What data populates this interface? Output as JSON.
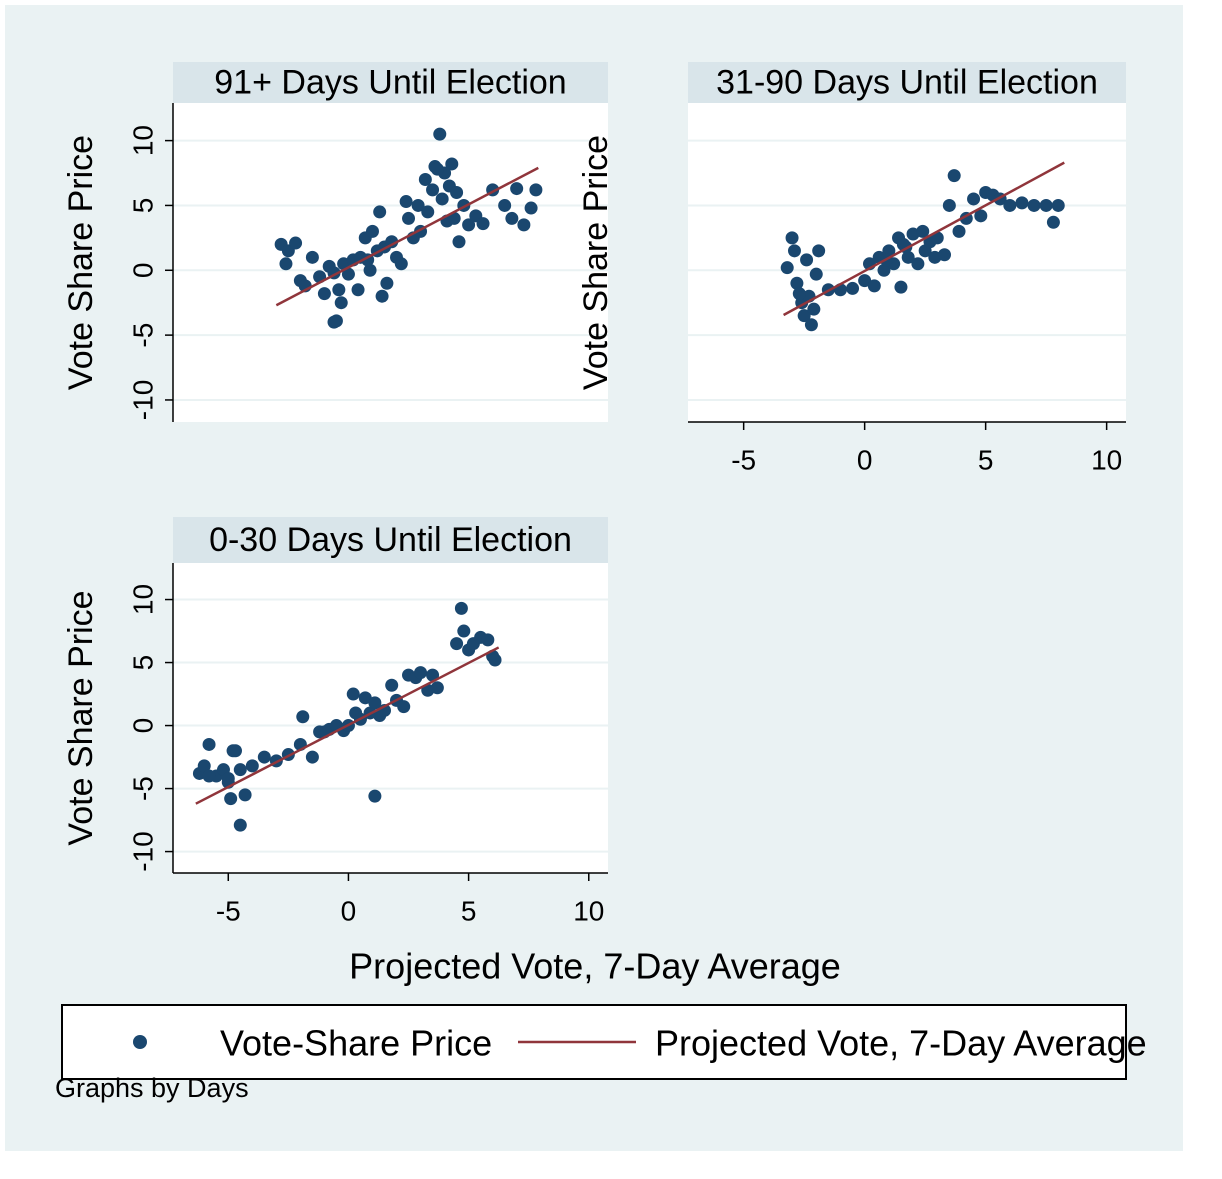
{
  "chart_data": [
    {
      "type": "scatter",
      "title": "91+ Days Until Election",
      "ylabel": "Vote Share Price",
      "xlim": [
        -7.3,
        10.8
      ],
      "ylim": [
        -11.7,
        12.9
      ],
      "yticks": [
        -10,
        -5,
        0,
        5,
        10
      ],
      "grid": true,
      "series": [
        {
          "name": "Vote-Share Price",
          "color": "#1a476f",
          "kind": "points",
          "x": [
            -2.8,
            -2.5,
            -2.2,
            -2.6,
            -2.0,
            -1.8,
            -1.5,
            -1.2,
            -1.0,
            -0.8,
            -0.6,
            -0.5,
            -0.3,
            -0.2,
            0.0,
            0.2,
            0.4,
            0.5,
            0.7,
            0.9,
            1.0,
            1.2,
            1.3,
            1.5,
            1.6,
            1.8,
            2.0,
            2.2,
            2.4,
            2.5,
            2.7,
            2.9,
            3.0,
            3.2,
            3.3,
            3.5,
            3.6,
            3.8,
            3.9,
            4.0,
            4.1,
            4.2,
            4.3,
            4.4,
            4.5,
            4.6,
            4.8,
            5.0,
            5.3,
            5.6,
            6.0,
            6.5,
            6.8,
            7.0,
            7.3,
            7.6,
            7.8,
            -0.6,
            -0.4,
            1.4,
            0.8,
            3.7
          ],
          "y": [
            2.0,
            1.5,
            2.1,
            0.5,
            -0.8,
            -1.2,
            1.0,
            -0.5,
            -1.8,
            0.3,
            -0.2,
            -3.9,
            -2.5,
            0.5,
            -0.3,
            0.8,
            -1.5,
            1.0,
            2.5,
            0.0,
            3.0,
            1.5,
            4.5,
            1.8,
            -1.0,
            2.2,
            1.0,
            0.5,
            5.3,
            4.0,
            2.5,
            5.0,
            3.0,
            7.0,
            4.5,
            6.2,
            8.0,
            10.5,
            5.5,
            7.5,
            3.8,
            6.5,
            8.2,
            4.0,
            6.0,
            2.2,
            5.0,
            3.5,
            4.2,
            3.6,
            6.2,
            5.0,
            4.0,
            6.3,
            3.5,
            4.8,
            6.2,
            -4.0,
            -1.5,
            -2.0,
            0.8,
            7.8
          ]
        },
        {
          "name": "Projected Vote, 7-Day Average",
          "color": "#90353b",
          "kind": "line",
          "x": [
            -3.0,
            7.9
          ],
          "y": [
            -2.7,
            7.9
          ]
        }
      ]
    },
    {
      "type": "scatter",
      "title": "31-90 Days Until Election",
      "xlim": [
        -7.3,
        10.8
      ],
      "ylim": [
        -11.7,
        12.9
      ],
      "xticks": [
        -5,
        0,
        5,
        10
      ],
      "yticks": [
        -10,
        -5,
        0,
        5,
        10
      ],
      "grid": true,
      "show_ytick_labels": false,
      "ylabel": "Vote Share Price",
      "series": [
        {
          "color": "#1a476f",
          "kind": "points",
          "x": [
            -3.2,
            -3.0,
            -2.9,
            -2.8,
            -2.6,
            -2.5,
            -2.4,
            -2.3,
            -2.2,
            -2.0,
            -1.9,
            -1.5,
            -1.0,
            -0.5,
            0.0,
            0.2,
            0.4,
            0.6,
            0.8,
            1.0,
            1.2,
            1.4,
            1.5,
            1.7,
            1.8,
            2.0,
            2.2,
            2.4,
            2.5,
            2.7,
            2.9,
            3.0,
            3.3,
            3.5,
            3.7,
            3.9,
            4.2,
            4.5,
            4.8,
            5.0,
            5.3,
            5.6,
            6.0,
            6.5,
            7.0,
            7.5,
            7.8,
            8.0,
            -2.7,
            -2.1,
            1.6,
            0.9
          ],
          "y": [
            0.2,
            2.5,
            1.5,
            -1.0,
            -2.5,
            -3.5,
            0.8,
            -2.0,
            -4.2,
            -0.3,
            1.5,
            -1.5,
            -1.5,
            -1.4,
            -0.8,
            0.5,
            -1.2,
            1.0,
            0.0,
            1.5,
            0.5,
            2.5,
            -1.3,
            1.8,
            1.0,
            2.8,
            0.5,
            3.0,
            1.5,
            2.2,
            1.0,
            2.5,
            1.2,
            5.0,
            7.3,
            3.0,
            4.0,
            5.5,
            4.2,
            6.0,
            5.8,
            5.5,
            5.0,
            5.2,
            5.0,
            5.0,
            3.7,
            5.0,
            -1.8,
            -3.0,
            2.0,
            0.8
          ]
        },
        {
          "color": "#90353b",
          "kind": "line",
          "x": [
            -3.35,
            8.25
          ],
          "y": [
            -3.45,
            8.3
          ]
        }
      ]
    },
    {
      "type": "scatter",
      "title": "0-30 Days Until Election",
      "ylabel": "Vote Share Price",
      "xlabel": "Projected Vote, 7-Day Average",
      "xlim": [
        -7.3,
        10.8
      ],
      "ylim": [
        -11.7,
        12.9
      ],
      "xticks": [
        -5,
        0,
        5,
        10
      ],
      "yticks": [
        -10,
        -5,
        0,
        5,
        10
      ],
      "grid": true,
      "series": [
        {
          "color": "#1a476f",
          "kind": "points",
          "x": [
            -6.2,
            -6.0,
            -5.8,
            -5.5,
            -5.2,
            -5.0,
            -4.9,
            -4.7,
            -4.5,
            -4.3,
            -4.0,
            -3.5,
            -3.0,
            -2.5,
            -2.0,
            -1.9,
            -1.5,
            -1.2,
            -1.0,
            -0.8,
            -0.5,
            -0.2,
            0.0,
            0.2,
            0.3,
            0.5,
            0.7,
            0.9,
            1.1,
            1.3,
            1.5,
            1.8,
            2.0,
            2.3,
            2.5,
            2.8,
            3.0,
            3.3,
            3.5,
            3.7,
            4.5,
            4.7,
            4.8,
            5.0,
            5.2,
            5.5,
            5.8,
            6.0,
            6.1,
            -5.0,
            -4.8,
            -4.5,
            1.1,
            -5.8
          ],
          "y": [
            -3.8,
            -3.2,
            -1.5,
            -4.0,
            -3.5,
            -4.5,
            -5.8,
            -2.0,
            -3.5,
            -5.5,
            -3.2,
            -2.5,
            -2.8,
            -2.3,
            -1.5,
            0.7,
            -2.5,
            -0.5,
            -0.5,
            -0.3,
            0.0,
            -0.4,
            0.0,
            2.5,
            1.0,
            0.5,
            2.2,
            1.0,
            1.8,
            0.8,
            1.2,
            3.2,
            2.0,
            1.5,
            4.0,
            3.8,
            4.2,
            2.8,
            4.0,
            3.0,
            6.5,
            9.3,
            7.5,
            6.0,
            6.5,
            7.0,
            6.8,
            5.5,
            5.2,
            -4.2,
            -2.0,
            -7.9,
            -5.6,
            -4.0
          ]
        },
        {
          "color": "#90353b",
          "kind": "line",
          "x": [
            -6.35,
            6.25
          ],
          "y": [
            -6.2,
            6.2
          ]
        }
      ]
    }
  ],
  "note": "Graphs by Days"
}
